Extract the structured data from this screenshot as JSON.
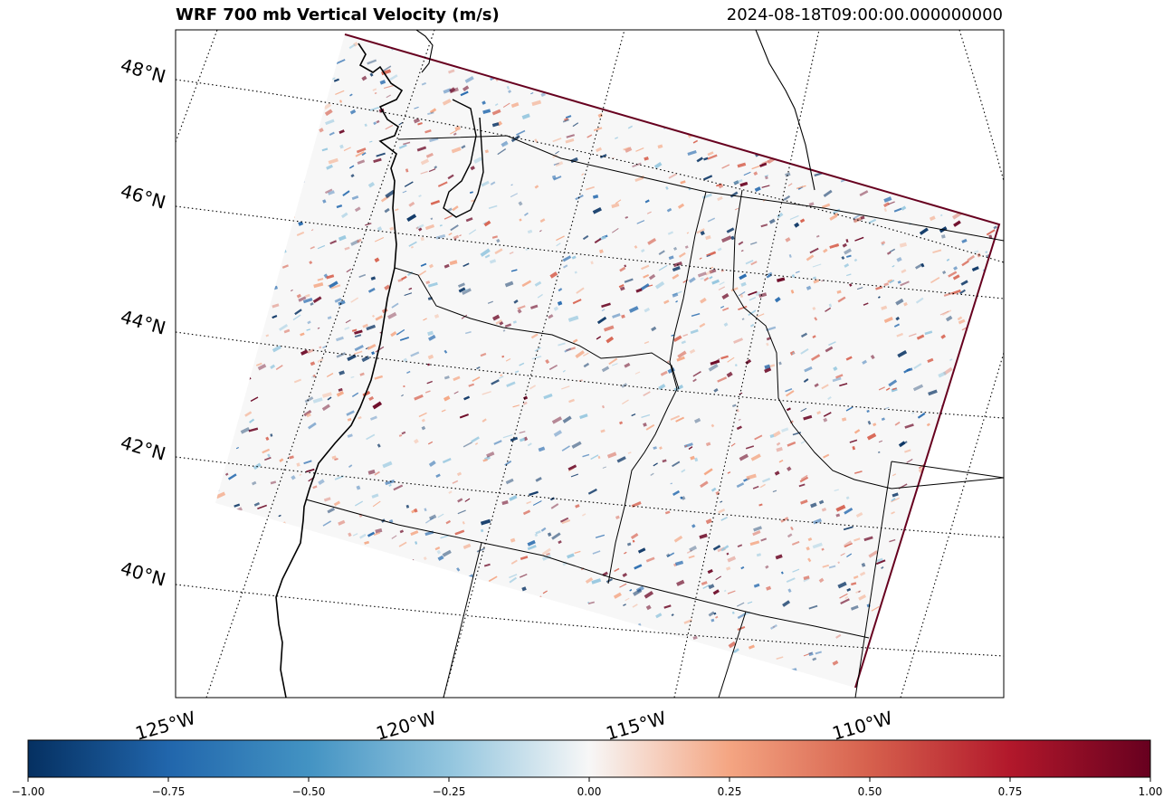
{
  "title": "WRF 700 mb Vertical Velocity (m/s)",
  "valid_time": "2024-08-18T09:00:00.000000000",
  "latitude_labels": [
    "48°N",
    "46°N",
    "44°N",
    "42°N",
    "40°N"
  ],
  "longitude_labels": [
    "125°W",
    "120°W",
    "115°W",
    "110°W"
  ],
  "colorbar": {
    "cmap": "RdBu_r",
    "min": -1.0,
    "max": 1.0,
    "ticks": [
      "−1.00",
      "−0.75",
      "−0.50",
      "−0.25",
      "0.00",
      "0.25",
      "0.50",
      "0.75",
      "1.00"
    ],
    "colors": [
      "#053061",
      "#2166ac",
      "#4393c3",
      "#92c5de",
      "#f7f7f7",
      "#f4a582",
      "#d6604d",
      "#b2182b",
      "#67001f"
    ]
  },
  "colors": {
    "coastline": "#000000",
    "gridlines": "#000000",
    "background": "#ffffff"
  }
}
